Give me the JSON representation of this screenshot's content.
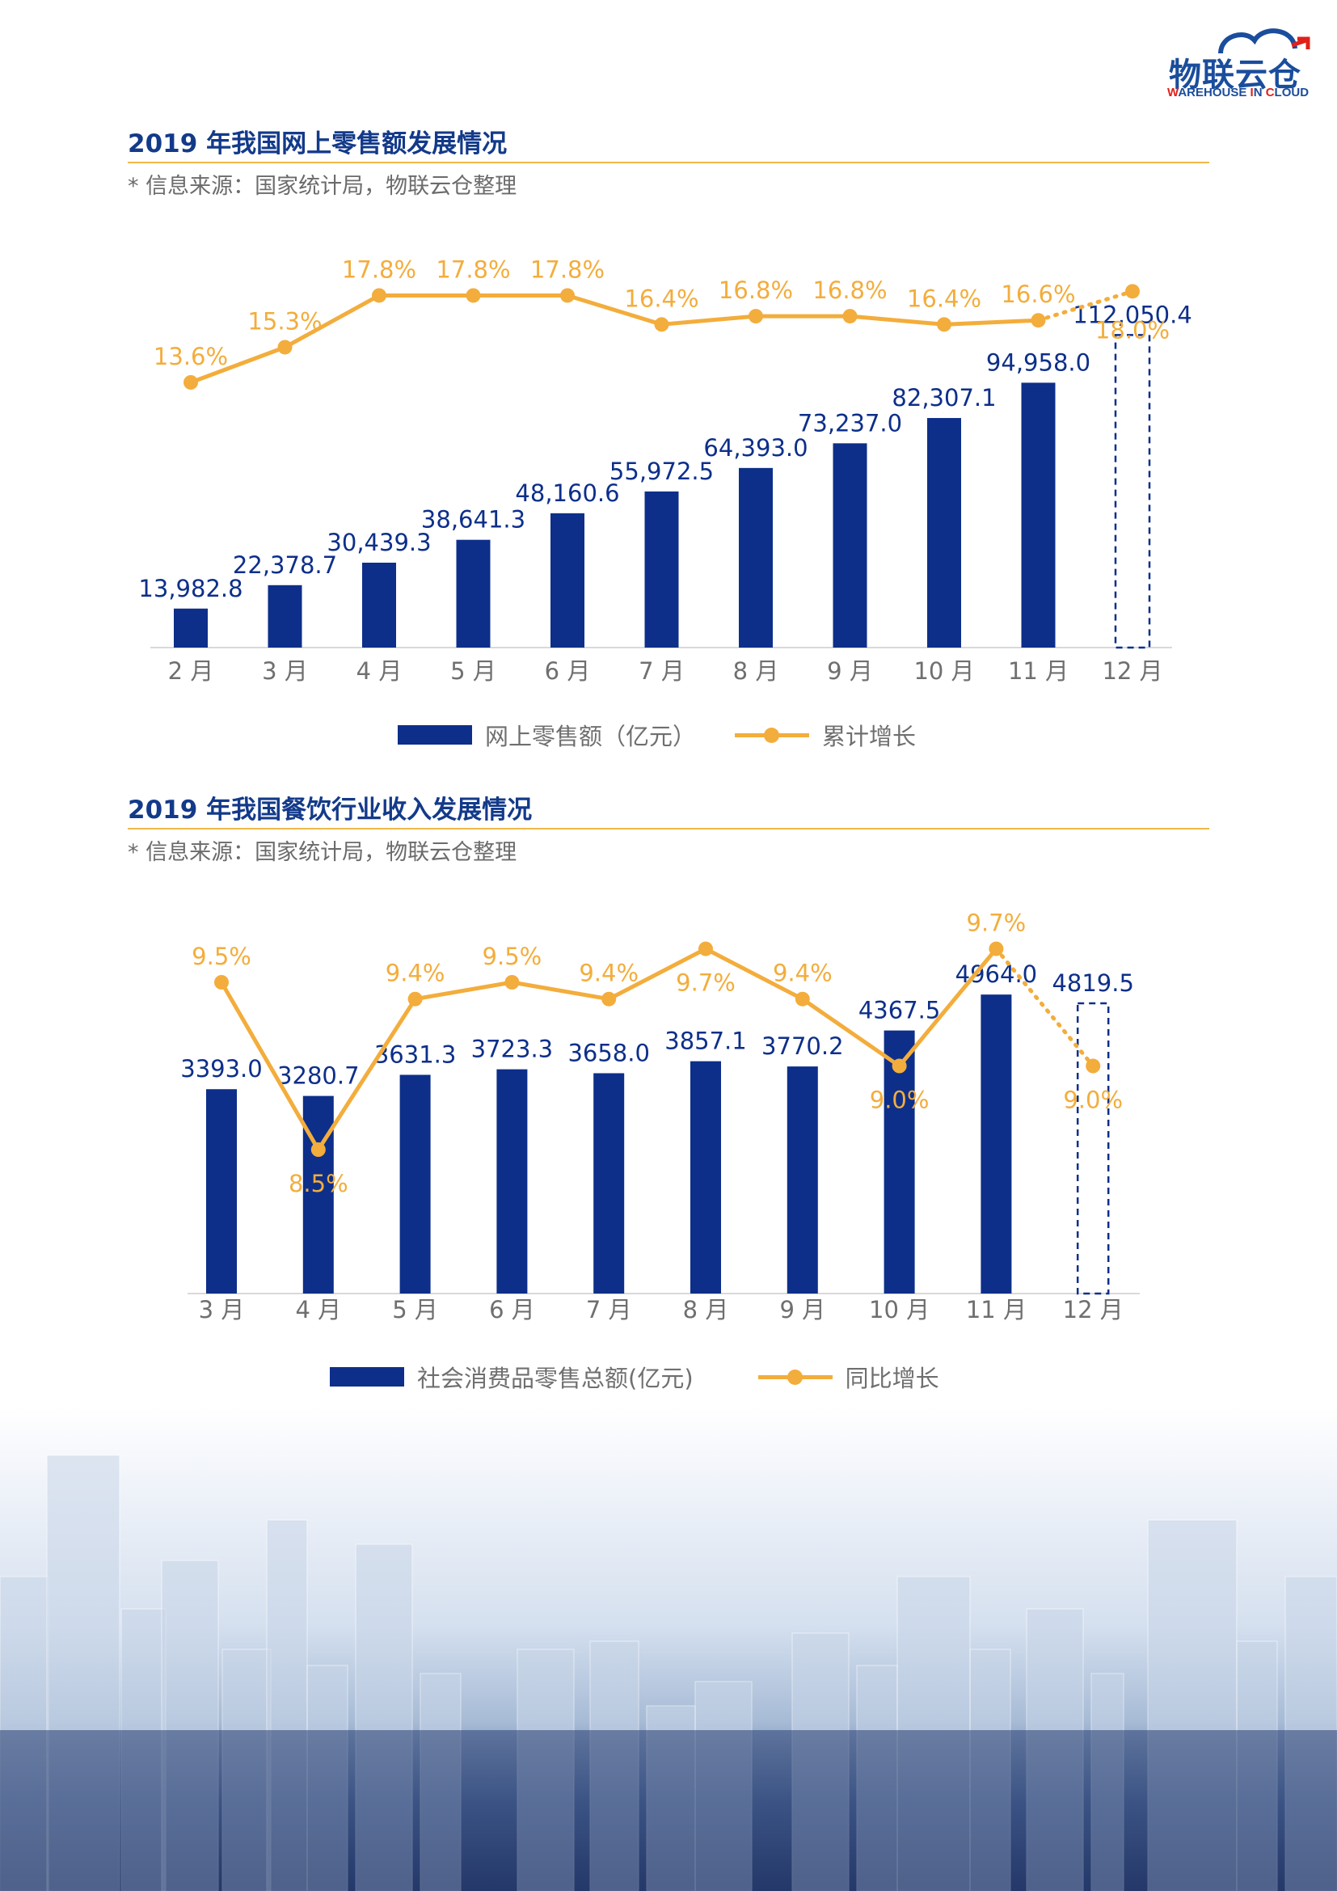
{
  "logo": {
    "mark": "物联云仓",
    "sub_parts": [
      "W",
      "AREHOUSE ",
      "I",
      "N ",
      "C",
      "LOUD"
    ],
    "icon": "cloud-icon"
  },
  "section1": {
    "title": "2019 年我国网上零售额发展情况",
    "source": "* 信息来源：国家统计局，物联云仓整理",
    "legend": {
      "bar": "网上零售额（亿元）",
      "line": "累计增长"
    }
  },
  "section2": {
    "title": "2019 年我国餐饮行业收入发展情况",
    "source": "* 信息来源：国家统计局，物联云仓整理",
    "legend": {
      "bar": "社会消费品零售总额(亿元)",
      "line": "同比增长"
    }
  },
  "colors": {
    "bar": "#0d2f8a",
    "line": "#f3ad3c",
    "rule": "#f0b84a",
    "axis_text": "#6f6f6f",
    "bar_label": "#0d2f8a"
  },
  "chart_data": [
    {
      "type": "bar",
      "title": "2019 年我国网上零售额发展情况",
      "categories": [
        "2 月",
        "3 月",
        "4 月",
        "5 月",
        "6 月",
        "7 月",
        "8 月",
        "9 月",
        "10 月",
        "11 月",
        "12 月"
      ],
      "series": [
        {
          "name": "网上零售额（亿元）",
          "type": "bar",
          "values": [
            13982.8,
            22378.7,
            30439.3,
            38641.3,
            48160.6,
            55972.5,
            64393.0,
            73237.0,
            82307.1,
            94958.0,
            112050.4
          ],
          "labels": [
            "13,982.8",
            "22,378.7",
            "30,439.3",
            "38,641.3",
            "48,160.6",
            "55,972.5",
            "64,393.0",
            "73,237.0",
            "82,307.1",
            "94,958.0",
            "112,050.4"
          ],
          "estimated_last": true
        },
        {
          "name": "累计增长",
          "type": "line",
          "values": [
            13.6,
            15.3,
            17.8,
            17.8,
            17.8,
            16.4,
            16.8,
            16.8,
            16.4,
            16.6,
            18.0
          ],
          "labels": [
            "13.6%",
            "15.3%",
            "17.8%",
            "17.8%",
            "17.8%",
            "16.4%",
            "16.8%",
            "16.8%",
            "16.4%",
            "16.6%",
            "18.0%"
          ],
          "estimated_last": true
        }
      ],
      "legend": "bottom"
    },
    {
      "type": "bar",
      "title": "2019 年我国餐饮行业收入发展情况",
      "categories": [
        "3 月",
        "4 月",
        "5 月",
        "6 月",
        "7 月",
        "8 月",
        "9 月",
        "10 月",
        "11 月",
        "12 月"
      ],
      "series": [
        {
          "name": "社会消费品零售总额(亿元)",
          "type": "bar",
          "values": [
            3393.0,
            3280.7,
            3631.3,
            3723.3,
            3658.0,
            3857.1,
            3770.2,
            4367.5,
            4964.0,
            4819.5
          ],
          "labels": [
            "3393.0",
            "3280.7",
            "3631.3",
            "3723.3",
            "3658.0",
            "3857.1",
            "3770.2",
            "4367.5",
            "4964.0",
            "4819.5"
          ],
          "estimated_last": true
        },
        {
          "name": "同比增长",
          "type": "line",
          "values": [
            9.5,
            8.5,
            9.4,
            9.5,
            9.4,
            9.7,
            9.4,
            9.0,
            9.7,
            9.0
          ],
          "labels": [
            "9.5%",
            "8.5%",
            "9.4%",
            "9.5%",
            "9.4%",
            "9.7%",
            "9.4%",
            "9.0%",
            "9.7%",
            "9.0%"
          ],
          "estimated_last": true
        }
      ],
      "legend": "bottom"
    }
  ]
}
